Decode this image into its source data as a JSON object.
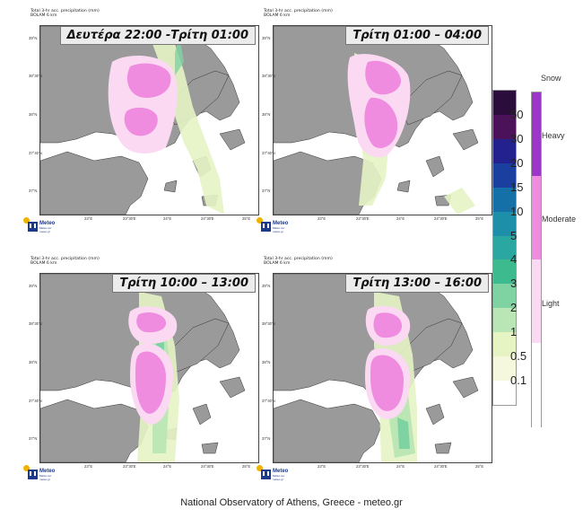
{
  "panels": [
    {
      "time_label": "Δευτέρα 22:00 -Τρίτη 01:00",
      "meta1": "Total 3-hr acc. precipitation (mm)",
      "meta2": "BOLAM 6 km"
    },
    {
      "time_label": "Τρίτη 01:00 – 04:00",
      "meta1": "Total 3-hr acc. precipitation (mm)",
      "meta2": "BOLAM 6 km"
    },
    {
      "time_label": "Τρίτη 10:00 – 13:00",
      "meta1": "Total 3-hr acc. precipitation (mm)",
      "meta2": "BOLAM 6 km"
    },
    {
      "time_label": "Τρίτη 13:00 – 16:00",
      "meta1": "Total 3-hr acc. precipitation (mm)",
      "meta2": "BOLAM 6 km"
    }
  ],
  "lat_ticks": [
    "39°N",
    "38°30'N",
    "38°N",
    "37°40'N",
    "37°N"
  ],
  "lon_ticks": [
    "23°E",
    "23°30'E",
    "24°E",
    "24°30'E",
    "25°E"
  ],
  "logo": {
    "name": "Meteo",
    "sub1": "Météo sur",
    "sub2": "meteo.gr"
  },
  "legend": {
    "labels": [
      "50",
      "30",
      "20",
      "15",
      "10",
      "5",
      "4",
      "3",
      "2",
      "1",
      "0.5",
      "0.1"
    ],
    "colors": [
      "#2a0d3a",
      "#4b1259",
      "#23218e",
      "#1b3f9e",
      "#1570a8",
      "#1d8fa8",
      "#2aa7a0",
      "#3dbb8f",
      "#7fd3a3",
      "#b9e6b4",
      "#e6f3c3",
      "#f6f8dd",
      "#ffffff"
    ]
  },
  "snow": {
    "title": "Snow",
    "levels": [
      {
        "label": "Heavy",
        "color": "#9b36c9"
      },
      {
        "label": "Moderate",
        "color": "#ef8ce0"
      },
      {
        "label": "Light",
        "color": "#fbd9f3"
      }
    ],
    "blank_color": "#ffffff"
  },
  "footer": "National Observatory of Athens, Greece - meteo.gr"
}
